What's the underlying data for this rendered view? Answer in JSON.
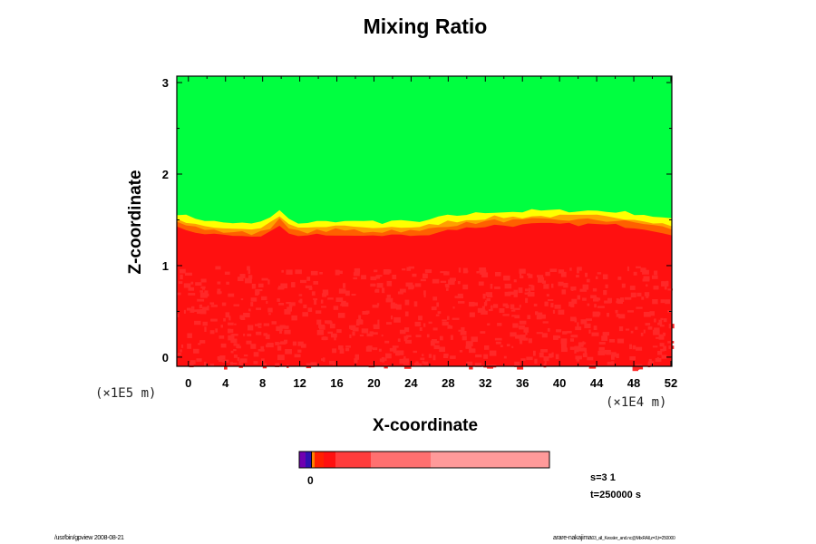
{
  "chart_data": {
    "type": "heatmap",
    "title": "Mixing Ratio",
    "xlabel": "X-coordinate",
    "ylabel": "Z-coordinate",
    "x_unit": "(×1E4 m)",
    "y_unit": "(×1E5 m)",
    "xlim": [
      -1.25,
      52.1
    ],
    "ylim": [
      -0.1,
      3.07
    ],
    "x_ticks": [
      0,
      4,
      8,
      12,
      16,
      20,
      24,
      28,
      32,
      36,
      40,
      44,
      48,
      52
    ],
    "y_ticks": [
      0,
      1,
      2,
      3
    ],
    "interface_z": [
      1.45,
      1.42,
      1.4,
      1.38,
      1.36,
      1.35,
      1.35,
      1.34,
      1.33,
      1.36,
      1.4,
      1.48,
      1.38,
      1.35,
      1.35,
      1.36,
      1.36,
      1.37,
      1.36,
      1.37,
      1.35,
      1.36,
      1.35,
      1.37,
      1.36,
      1.36,
      1.35,
      1.38,
      1.4,
      1.42,
      1.43,
      1.44,
      1.45,
      1.46,
      1.47,
      1.47,
      1.47,
      1.47,
      1.48,
      1.48,
      1.48,
      1.48,
      1.48,
      1.48,
      1.48,
      1.48,
      1.47,
      1.47,
      1.46,
      1.45,
      1.44,
      1.42,
      1.4,
      1.38
    ],
    "colors": {
      "upper": "#00ff40",
      "lower": "#ff1010",
      "lower_light": "#ff2828",
      "transition": [
        "#ffff00",
        "#ffa000",
        "#ff6000"
      ]
    },
    "colorbar": {
      "tick_label": "0",
      "segments": [
        "#7000b0",
        "#3010b0",
        "#ff8000",
        "#ff2000",
        "#ff1010",
        "#ff3c3c",
        "#ff7070",
        "#ff9a9a"
      ]
    }
  },
  "annotations": {
    "s_label": "s=3 1",
    "t_label": "t=250000 s",
    "footer_left": "/usr/bin/gpview 2008-08-21",
    "footer_right_main": "arare-nakajima",
    "footer_right_sub": "03_all_Kessler_and.nc@MixRAll,z=3,t=250000"
  }
}
